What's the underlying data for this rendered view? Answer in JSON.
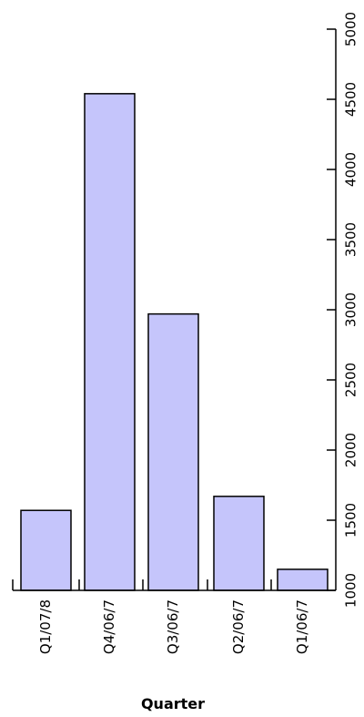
{
  "chart_data": {
    "type": "bar",
    "orientation": "vertical-bars, rotated text (value axis on right)",
    "categories": [
      "Q1/07/8",
      "Q4/06/7",
      "Q3/06/7",
      "Q2/06/7",
      "Q1/06/7"
    ],
    "values": [
      1570,
      4540,
      2970,
      1670,
      1150
    ],
    "xlabel": "Quarter",
    "ylabel": "",
    "ylim": [
      1000,
      5000
    ],
    "yticks": [
      1000,
      1500,
      2000,
      2500,
      3000,
      3500,
      4000,
      4500,
      5000
    ],
    "grid": false,
    "legend": "none",
    "colors": {
      "bar_fill": "#c5c5fb",
      "bar_stroke": "#000000",
      "axis": "#000000"
    }
  }
}
